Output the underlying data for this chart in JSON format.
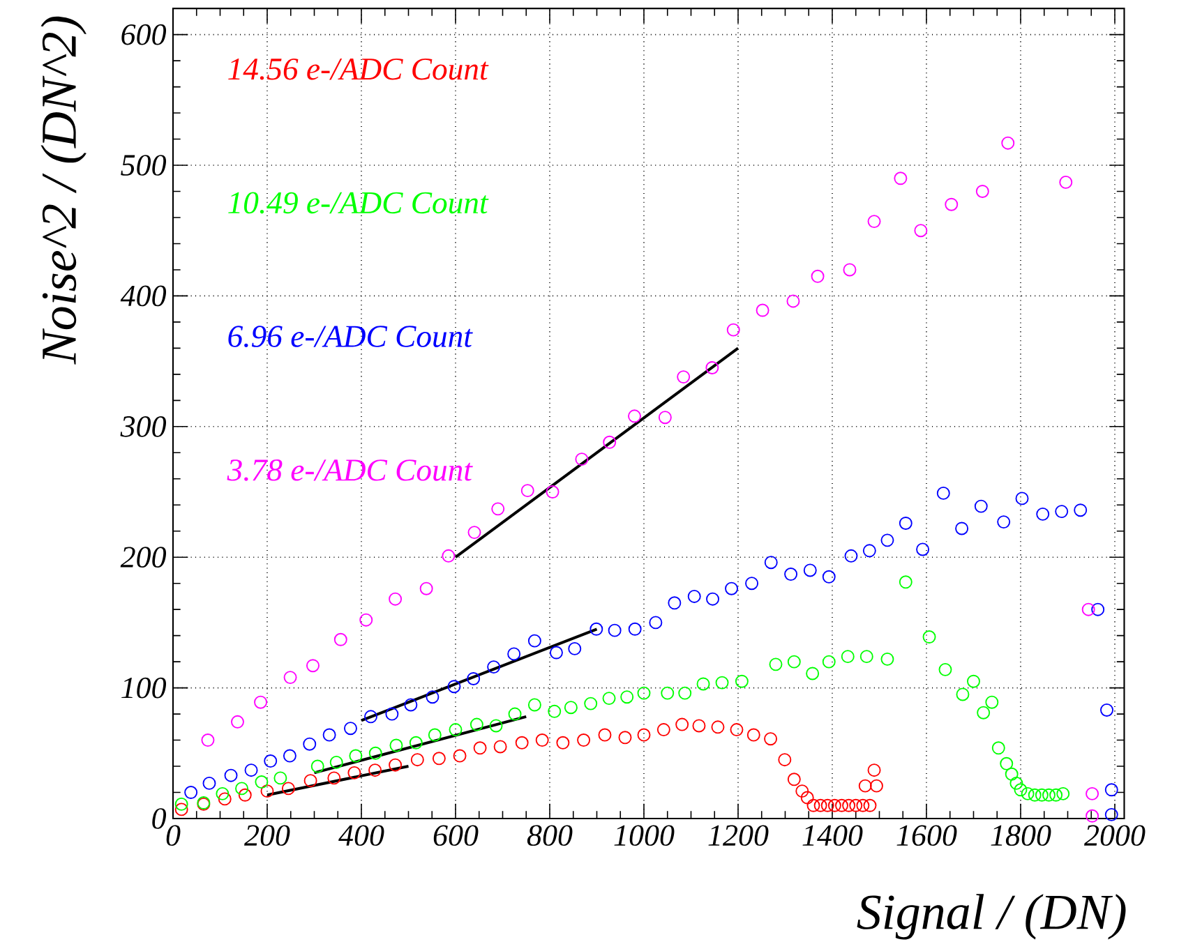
{
  "chart_data": {
    "type": "scatter",
    "xlabel": "Signal / (DN)",
    "ylabel": "Noise^2 / (DN^2)",
    "xlim": [
      0,
      2020
    ],
    "ylim": [
      0,
      620
    ],
    "xticks": [
      0,
      200,
      400,
      600,
      800,
      1000,
      1200,
      1400,
      1600,
      1800,
      2000
    ],
    "yticks": [
      0,
      100,
      200,
      300,
      400,
      500,
      600
    ],
    "grid": true,
    "marker": "circle",
    "series": [
      {
        "name": "14.56 e-/ADC Count",
        "color": "#ff0000",
        "x": [
          18,
          65,
          110,
          153,
          200,
          245,
          292,
          342,
          385,
          429,
          472,
          519,
          565,
          609,
          652,
          695,
          741,
          784,
          828,
          872,
          917,
          960,
          1000,
          1042,
          1081,
          1117,
          1157,
          1197,
          1233,
          1269,
          1299,
          1319,
          1336,
          1347,
          1360,
          1375,
          1390,
          1405,
          1420,
          1435,
          1450,
          1465,
          1480,
          1470,
          1489,
          1494
        ],
        "values": [
          7,
          11,
          15,
          18,
          21,
          23,
          29,
          31,
          35,
          37,
          41,
          45,
          46,
          48,
          54,
          55,
          58,
          60,
          58,
          60,
          64,
          62,
          64,
          68,
          72,
          71,
          70,
          68,
          64,
          61,
          45,
          30,
          21,
          16,
          10,
          10,
          10,
          10,
          10,
          10,
          10,
          10,
          10,
          25,
          37,
          25
        ]
      },
      {
        "name": "10.49 e-/ADC Count",
        "color": "#00ff00",
        "x": [
          18,
          65,
          105,
          146,
          188,
          228,
          307,
          347,
          388,
          430,
          474,
          516,
          556,
          600,
          645,
          686,
          726,
          768,
          810,
          845,
          887,
          926,
          964,
          1000,
          1050,
          1087,
          1126,
          1166,
          1208,
          1280,
          1319,
          1358,
          1393,
          1433,
          1473,
          1517,
          1556,
          1606,
          1640,
          1677,
          1700,
          1721,
          1739,
          1753,
          1770,
          1781,
          1791,
          1800,
          1815,
          1830,
          1845,
          1860,
          1875,
          1890
        ],
        "values": [
          11,
          12,
          19,
          23,
          28,
          31,
          40,
          43,
          48,
          50,
          56,
          58,
          64,
          68,
          72,
          71,
          80,
          87,
          82,
          85,
          88,
          92,
          93,
          96,
          96,
          96,
          103,
          104,
          105,
          118,
          120,
          111,
          120,
          124,
          124,
          122,
          181,
          139,
          114,
          95,
          105,
          81,
          89,
          54,
          42,
          34,
          27,
          22,
          19,
          18,
          18,
          18,
          18,
          19
        ]
      },
      {
        "name": "6.96 e-/ADC Count",
        "color": "#0000ff",
        "x": [
          38,
          77,
          123,
          166,
          207,
          248,
          290,
          332,
          377,
          420,
          465,
          505,
          551,
          597,
          638,
          681,
          724,
          768,
          814,
          853,
          899,
          938,
          981,
          1025,
          1065,
          1107,
          1146,
          1186,
          1229,
          1270,
          1312,
          1353,
          1393,
          1440,
          1479,
          1517,
          1556,
          1592,
          1636,
          1675,
          1716,
          1764,
          1803,
          1847,
          1887,
          1927,
          1964,
          1983,
          1993,
          1993
        ],
        "values": [
          20,
          27,
          33,
          37,
          44,
          48,
          57,
          64,
          69,
          78,
          80,
          87,
          93,
          101,
          107,
          116,
          126,
          136,
          127,
          130,
          145,
          144,
          145,
          150,
          165,
          170,
          168,
          176,
          180,
          196,
          187,
          190,
          185,
          201,
          205,
          213,
          226,
          206,
          249,
          222,
          239,
          227,
          245,
          233,
          235,
          236,
          160,
          83,
          22,
          3
        ]
      },
      {
        "name": "3.78 e-/ADC Count",
        "color": "#ff00ff",
        "x": [
          74,
          137,
          186,
          249,
          297,
          356,
          410,
          472,
          538,
          585,
          640,
          690,
          753,
          806,
          868,
          927,
          980,
          1045,
          1084,
          1145,
          1190,
          1252,
          1317,
          1369,
          1437,
          1489,
          1545,
          1588,
          1653,
          1719,
          1773,
          1896,
          1944,
          1952,
          1952
        ],
        "values": [
          60,
          74,
          89,
          108,
          117,
          137,
          152,
          168,
          176,
          201,
          219,
          237,
          251,
          250,
          275,
          288,
          308,
          307,
          338,
          345,
          374,
          389,
          396,
          415,
          420,
          457,
          490,
          450,
          470,
          480,
          517,
          487,
          160,
          19,
          2
        ]
      },
      {
        "type": "line",
        "marker": "none",
        "color": "#000000",
        "x": [
          200,
          500
        ],
        "values": [
          18,
          40
        ]
      },
      {
        "type": "line",
        "marker": "none",
        "color": "#000000",
        "x": [
          300,
          750
        ],
        "values": [
          35,
          78
        ]
      },
      {
        "type": "line",
        "marker": "none",
        "color": "#000000",
        "x": [
          400,
          900
        ],
        "values": [
          75,
          145
        ]
      },
      {
        "type": "line",
        "marker": "none",
        "color": "#000000",
        "x": [
          600,
          1200
        ],
        "values": [
          200,
          360
        ]
      }
    ]
  }
}
